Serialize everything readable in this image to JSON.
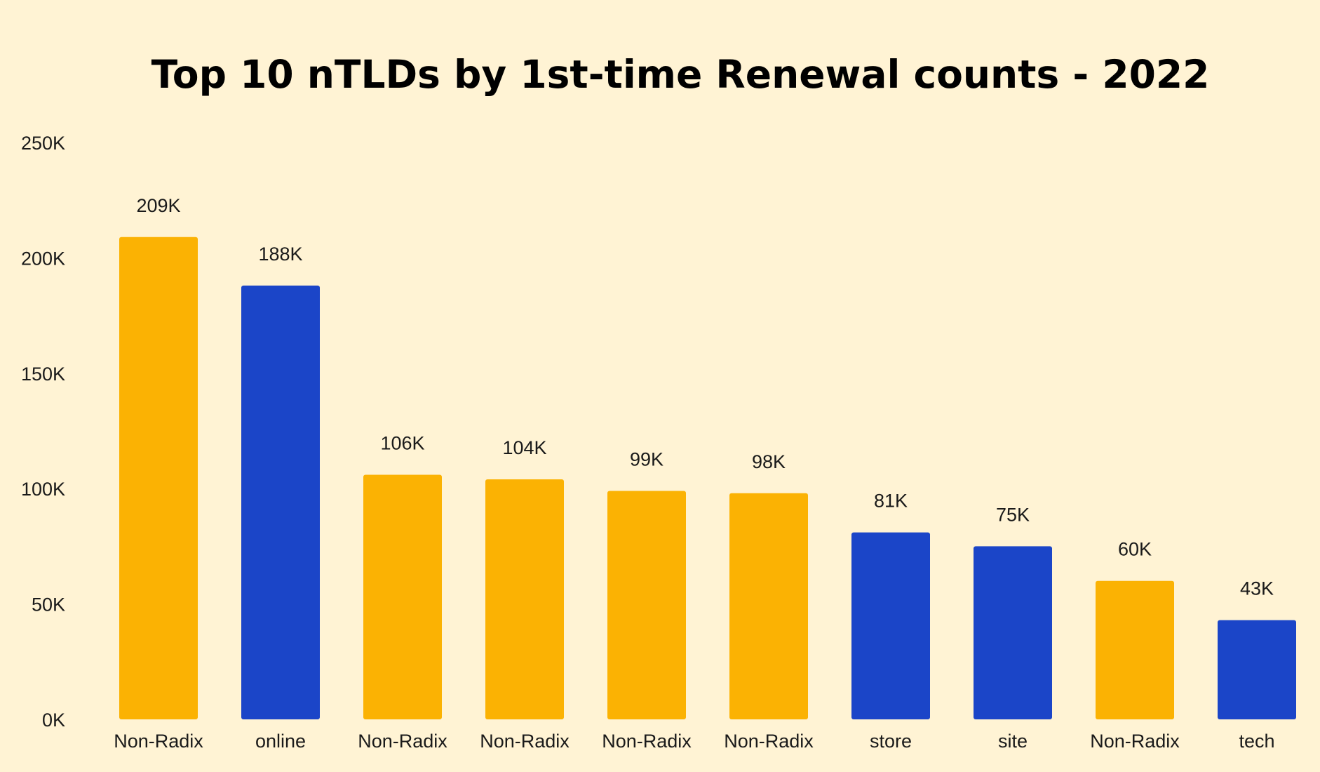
{
  "chart_data": {
    "type": "bar",
    "title": "Top 10 nTLDs by 1st-time Renewal counts - 2022",
    "xlabel": "",
    "ylabel": "",
    "ylim": [
      0,
      250000
    ],
    "yticks": [
      0,
      50000,
      100000,
      150000,
      200000,
      250000
    ],
    "ytick_labels": [
      "0K",
      "50K",
      "100K",
      "150K",
      "200K",
      "250K"
    ],
    "categories": [
      "Non-Radix",
      "online",
      "Non-Radix",
      "Non-Radix",
      "Non-Radix",
      "Non-Radix",
      "store",
      "site",
      "Non-Radix",
      "tech"
    ],
    "values": [
      209000,
      188000,
      106000,
      104000,
      99000,
      98000,
      81000,
      75000,
      60000,
      43000
    ],
    "data_labels": [
      "209K",
      "188K",
      "106K",
      "104K",
      "99K",
      "98K",
      "81K",
      "75K",
      "60K",
      "43K"
    ],
    "bar_colors": [
      "#fbb203",
      "#1b45c8",
      "#fbb203",
      "#fbb203",
      "#fbb203",
      "#fbb203",
      "#1b45c8",
      "#1b45c8",
      "#fbb203",
      "#1b45c8"
    ],
    "grid": false,
    "legend": "none"
  },
  "colors": {
    "background": "#fff3d4",
    "non_radix": "#fbb203",
    "radix": "#1b45c8"
  }
}
